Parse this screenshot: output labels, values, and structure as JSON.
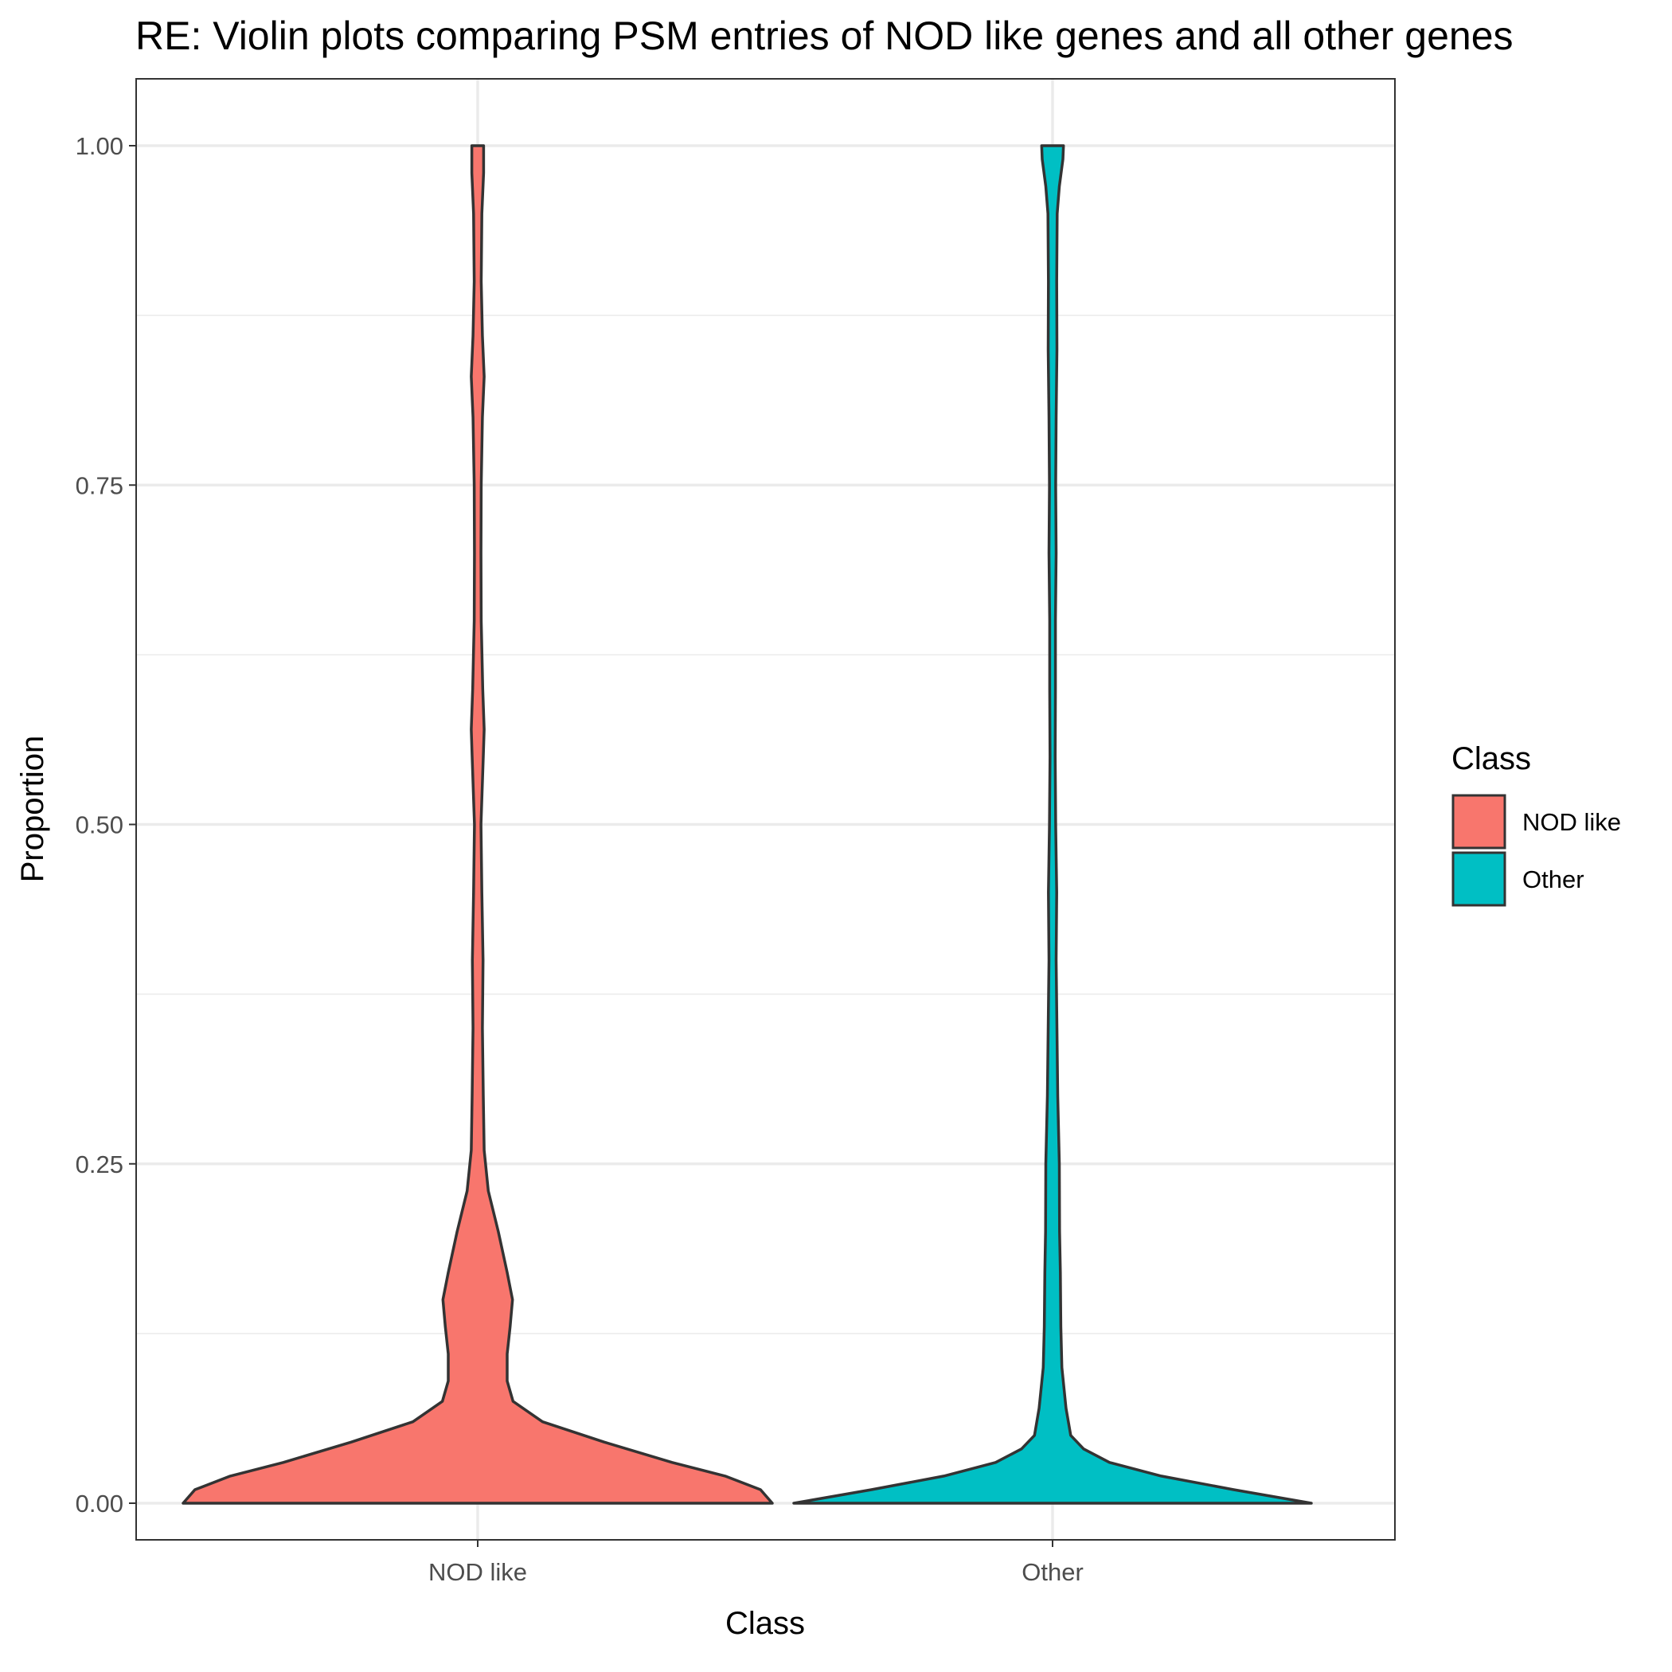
{
  "chart_data": {
    "type": "violin",
    "title": "RE: Violin plots comparing PSM entries of NOD like genes and all other genes",
    "xlabel": "Class",
    "ylabel": "Proportion",
    "ylim": [
      -0.05,
      1.05
    ],
    "y_ticks": [
      0,
      0.25,
      0.5,
      0.75,
      1
    ],
    "y_tick_labels": [
      "0.00",
      "0.25",
      "0.50",
      "0.75",
      "1.00"
    ],
    "categories": [
      "NOD like",
      "Other"
    ],
    "grid": true,
    "legend": {
      "title": "Class",
      "placement": "right",
      "entries": [
        "NOD like",
        "Other"
      ]
    },
    "series": [
      {
        "name": "NOD like",
        "color": "#F8766D",
        "y_range": [
          0,
          1
        ],
        "density_profile": [
          {
            "y": 0.0,
            "w": 1.0
          },
          {
            "y": 0.01,
            "w": 0.96
          },
          {
            "y": 0.02,
            "w": 0.84
          },
          {
            "y": 0.03,
            "w": 0.66
          },
          {
            "y": 0.045,
            "w": 0.43
          },
          {
            "y": 0.06,
            "w": 0.22
          },
          {
            "y": 0.075,
            "w": 0.12
          },
          {
            "y": 0.09,
            "w": 0.1
          },
          {
            "y": 0.11,
            "w": 0.1
          },
          {
            "y": 0.13,
            "w": 0.11
          },
          {
            "y": 0.15,
            "w": 0.118
          },
          {
            "y": 0.17,
            "w": 0.1
          },
          {
            "y": 0.2,
            "w": 0.07
          },
          {
            "y": 0.23,
            "w": 0.036
          },
          {
            "y": 0.26,
            "w": 0.022
          },
          {
            "y": 0.3,
            "w": 0.019
          },
          {
            "y": 0.35,
            "w": 0.016
          },
          {
            "y": 0.4,
            "w": 0.018
          },
          {
            "y": 0.45,
            "w": 0.014
          },
          {
            "y": 0.5,
            "w": 0.011
          },
          {
            "y": 0.55,
            "w": 0.019
          },
          {
            "y": 0.57,
            "w": 0.022
          },
          {
            "y": 0.6,
            "w": 0.017
          },
          {
            "y": 0.65,
            "w": 0.012
          },
          {
            "y": 0.7,
            "w": 0.011
          },
          {
            "y": 0.75,
            "w": 0.012
          },
          {
            "y": 0.8,
            "w": 0.016
          },
          {
            "y": 0.83,
            "w": 0.022
          },
          {
            "y": 0.86,
            "w": 0.016
          },
          {
            "y": 0.9,
            "w": 0.012
          },
          {
            "y": 0.95,
            "w": 0.014
          },
          {
            "y": 0.98,
            "w": 0.02
          },
          {
            "y": 1.0,
            "w": 0.02
          }
        ]
      },
      {
        "name": "Other",
        "color": "#00BFC4",
        "y_range": [
          0,
          1
        ],
        "density_profile": [
          {
            "y": 0.0,
            "w": 1.0
          },
          {
            "y": 0.01,
            "w": 0.7
          },
          {
            "y": 0.02,
            "w": 0.42
          },
          {
            "y": 0.03,
            "w": 0.22
          },
          {
            "y": 0.04,
            "w": 0.12
          },
          {
            "y": 0.05,
            "w": 0.07
          },
          {
            "y": 0.07,
            "w": 0.052
          },
          {
            "y": 0.1,
            "w": 0.036
          },
          {
            "y": 0.13,
            "w": 0.032
          },
          {
            "y": 0.17,
            "w": 0.03
          },
          {
            "y": 0.2,
            "w": 0.027
          },
          {
            "y": 0.25,
            "w": 0.026
          },
          {
            "y": 0.3,
            "w": 0.02
          },
          {
            "y": 0.35,
            "w": 0.017
          },
          {
            "y": 0.4,
            "w": 0.014
          },
          {
            "y": 0.45,
            "w": 0.016
          },
          {
            "y": 0.5,
            "w": 0.012
          },
          {
            "y": 0.55,
            "w": 0.01
          },
          {
            "y": 0.6,
            "w": 0.011
          },
          {
            "y": 0.65,
            "w": 0.011
          },
          {
            "y": 0.7,
            "w": 0.014
          },
          {
            "y": 0.75,
            "w": 0.012
          },
          {
            "y": 0.8,
            "w": 0.014
          },
          {
            "y": 0.85,
            "w": 0.017
          },
          {
            "y": 0.9,
            "w": 0.016
          },
          {
            "y": 0.95,
            "w": 0.018
          },
          {
            "y": 0.97,
            "w": 0.026
          },
          {
            "y": 0.99,
            "w": 0.04
          },
          {
            "y": 1.0,
            "w": 0.042
          }
        ]
      }
    ]
  }
}
